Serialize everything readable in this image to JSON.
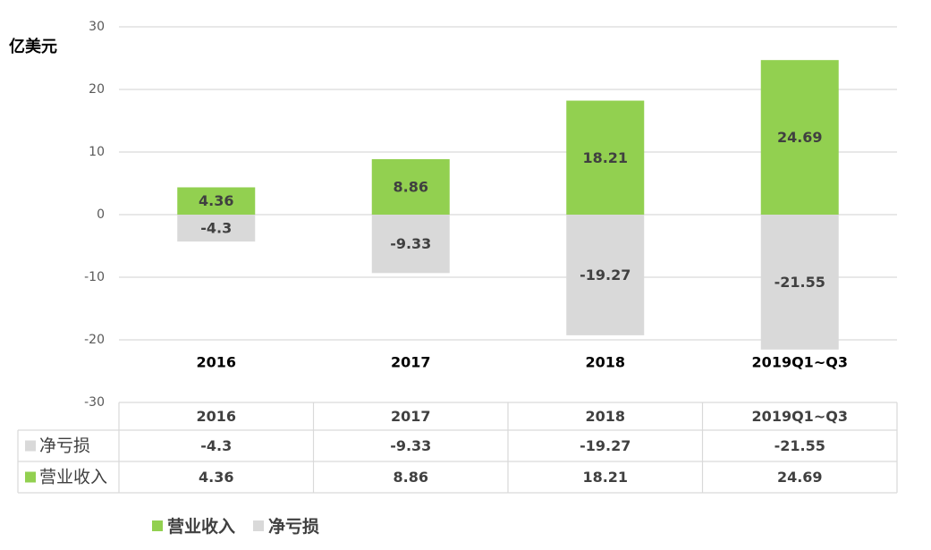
{
  "chart_data": {
    "type": "bar",
    "unit": "亿美元",
    "categories": [
      "2016",
      "2017",
      "2018",
      "2019Q1~Q3"
    ],
    "series": [
      {
        "name": "营业收入",
        "values": [
          4.36,
          8.86,
          18.21,
          24.69
        ],
        "color": "#92d050"
      },
      {
        "name": "净亏损",
        "values": [
          -4.3,
          -9.33,
          -19.27,
          -21.55
        ],
        "color": "#d9d9d9"
      }
    ],
    "ylim": [
      -30,
      30
    ],
    "yticks": [
      30,
      20,
      10,
      0,
      -10,
      -20,
      -30
    ],
    "grid": true,
    "legend_position": "bottom",
    "data_table": {
      "headers": [
        "2016",
        "2017",
        "2018",
        "2019Q1~Q3"
      ],
      "rows": [
        {
          "label": "净亏损",
          "values": [
            "-4.3",
            "-9.33",
            "-19.27",
            "-21.55"
          ],
          "color": "#d9d9d9"
        },
        {
          "label": "营业收入",
          "values": [
            "4.36",
            "8.86",
            "18.21",
            "24.69"
          ],
          "color": "#92d050"
        }
      ]
    }
  },
  "legend": {
    "items": [
      {
        "label": "营业收入",
        "color": "#92d050"
      },
      {
        "label": "净亏损",
        "color": "#d9d9d9"
      }
    ]
  }
}
